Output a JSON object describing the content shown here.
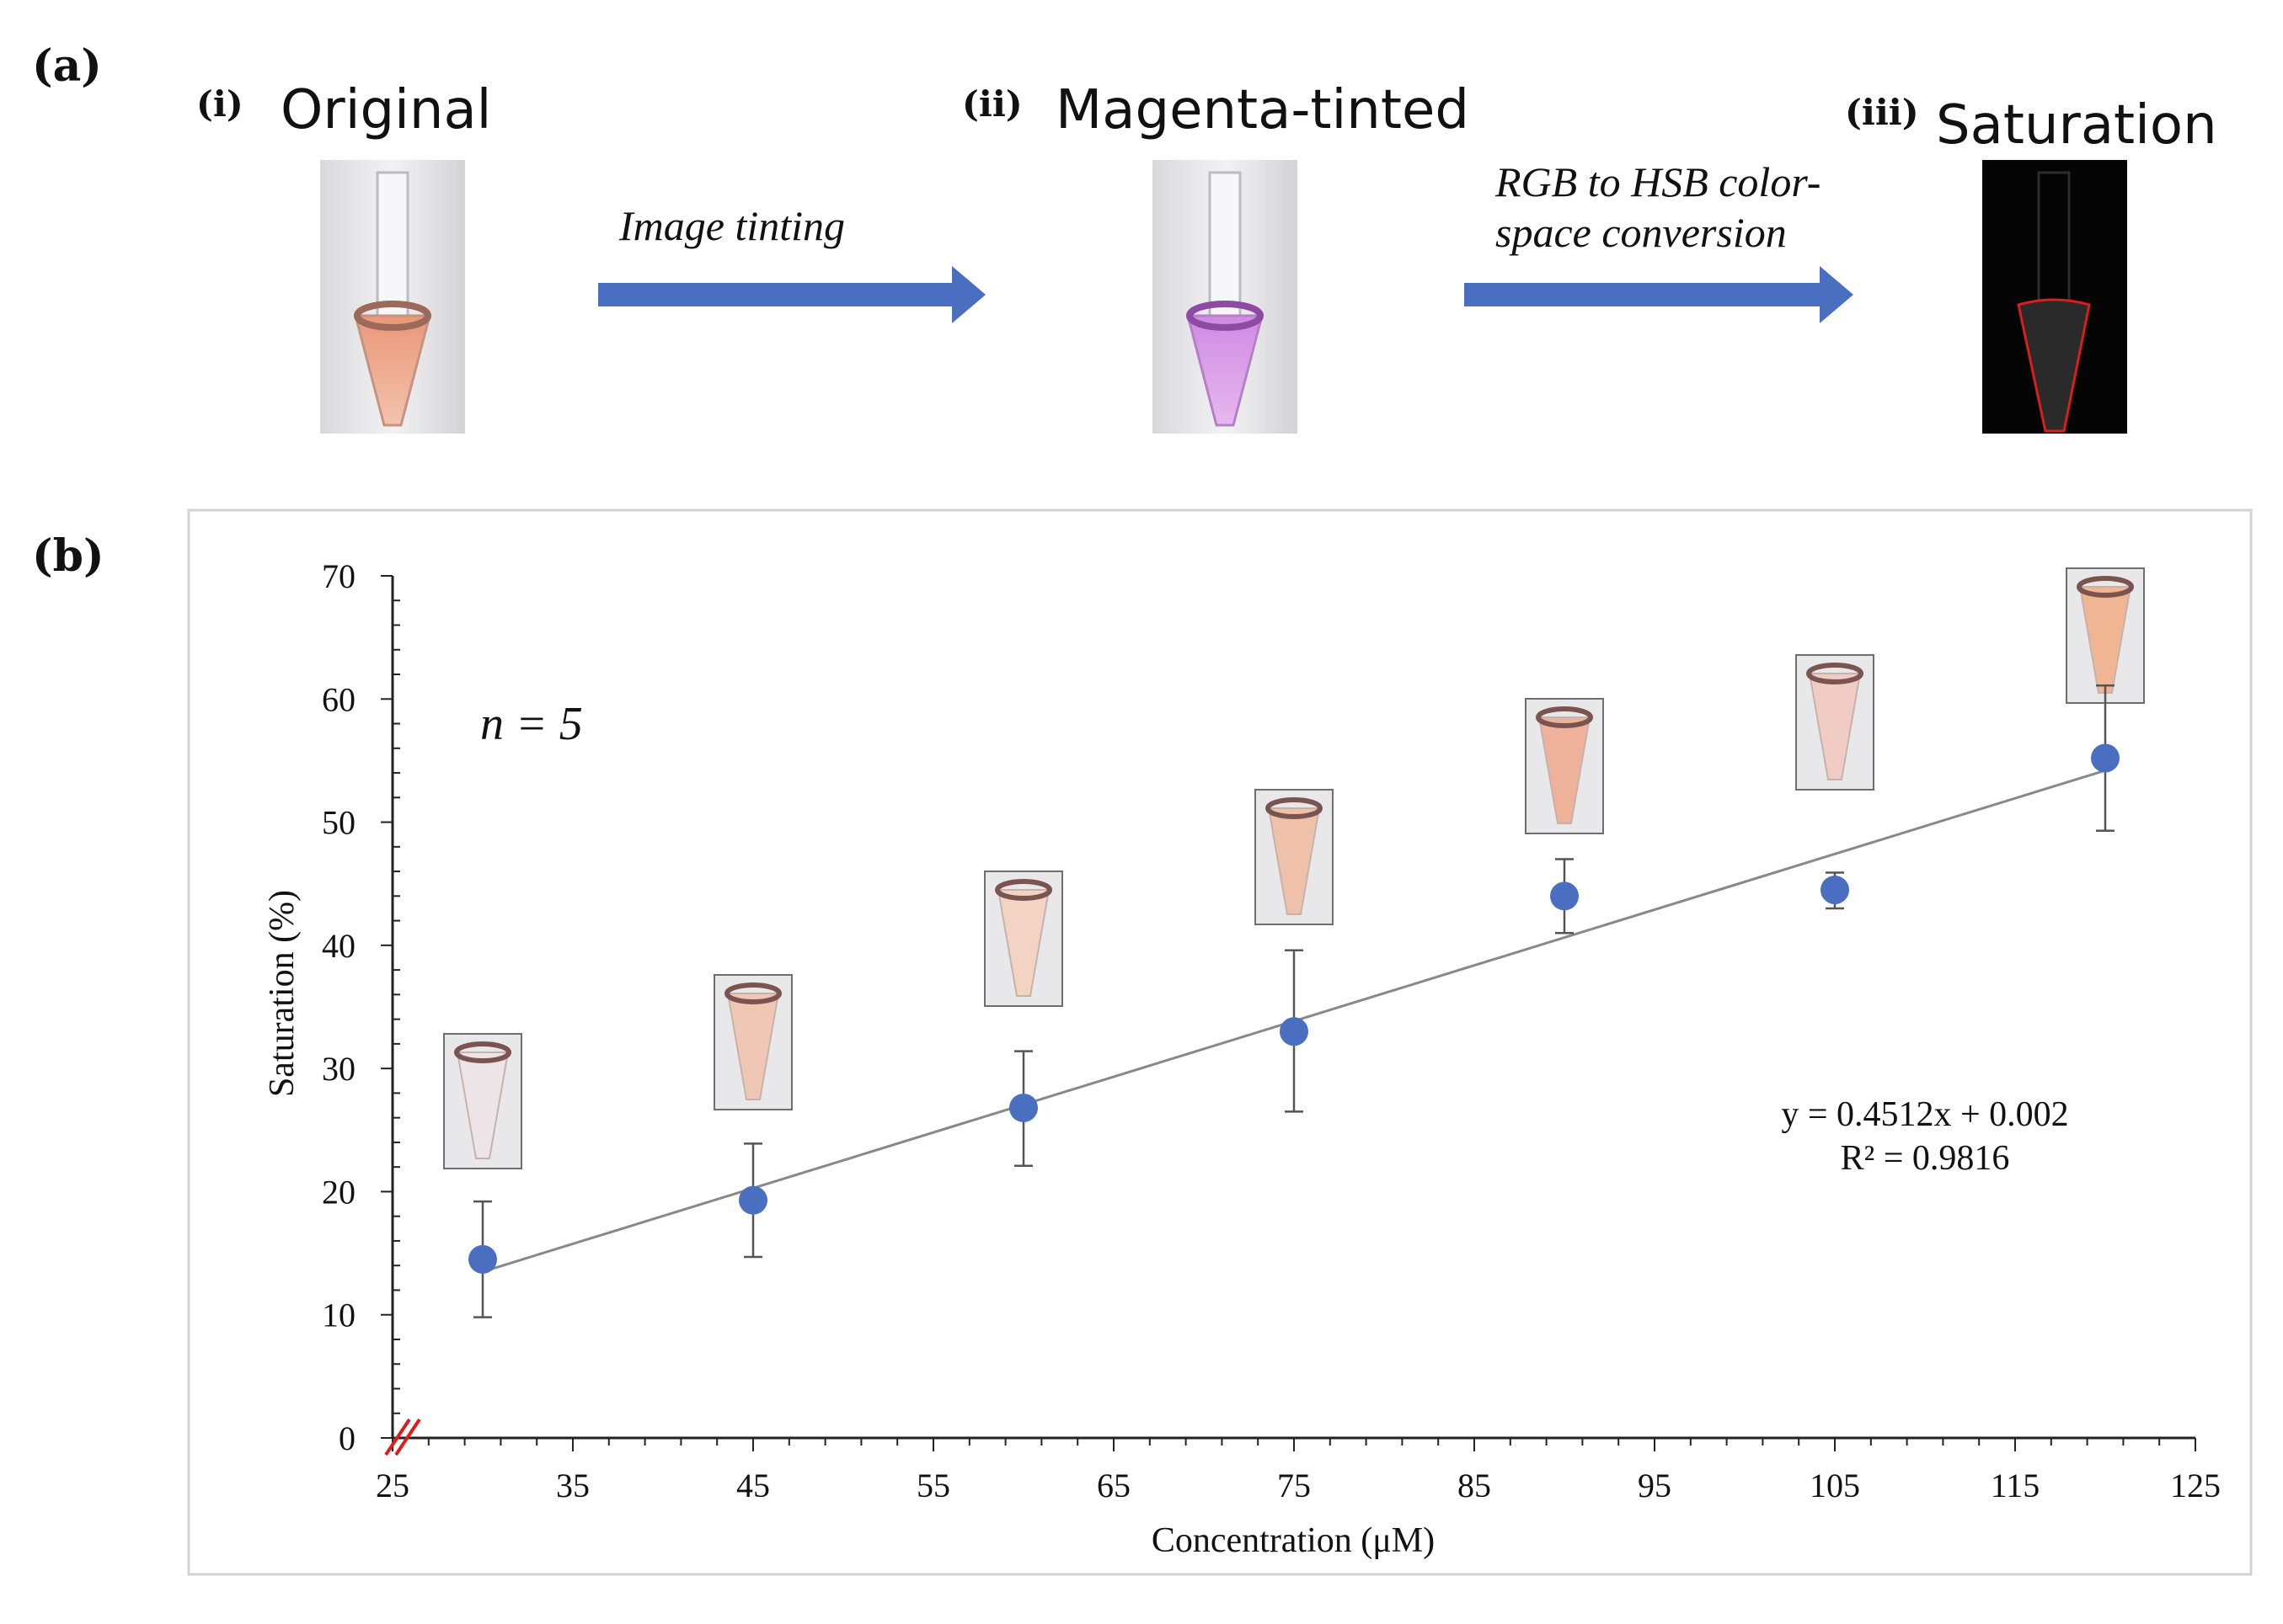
{
  "panel_a": {
    "label": "(a)",
    "steps": [
      {
        "num": "(i)",
        "title": "Original"
      },
      {
        "num": "(ii)",
        "title": "Magenta-tinted"
      },
      {
        "num": "(iii)",
        "title": "Saturation"
      }
    ],
    "arrows": [
      {
        "lines": [
          "Image tinting"
        ]
      },
      {
        "lines": [
          "RGB to HSB color-",
          "space conversion"
        ]
      }
    ],
    "colors": {
      "arrow": "#4a6fc1",
      "original_liquid": "#eaa58a",
      "tinted_liquid": "#d79ae6",
      "saturation_outline": "#d81e1e"
    }
  },
  "panel_b": {
    "label": "(b)"
  },
  "chart_data": {
    "type": "scatter",
    "title": "",
    "xlabel": "Concentration (μM)",
    "ylabel": "Saturation (%)",
    "xlim": [
      25,
      125
    ],
    "ylim": [
      0,
      70
    ],
    "xticks": [
      25,
      35,
      45,
      55,
      65,
      75,
      85,
      95,
      105,
      115,
      125
    ],
    "yticks": [
      0,
      10,
      20,
      30,
      40,
      50,
      60,
      70
    ],
    "series": [
      {
        "name": "Saturation",
        "x": [
          30,
          45,
          60,
          75,
          90,
          105,
          120
        ],
        "y": [
          14.5,
          19.3,
          26.8,
          33.0,
          44.0,
          44.5,
          55.2
        ],
        "err_low": [
          9.8,
          14.7,
          22.1,
          26.5,
          41.0,
          43.0,
          49.3
        ],
        "err_high": [
          19.2,
          23.9,
          31.4,
          39.6,
          47.0,
          45.9,
          61.1
        ],
        "color": "#4a6fc1"
      }
    ],
    "trendline": {
      "x": [
        30,
        120
      ],
      "y": [
        13.5,
        54.2
      ],
      "color": "#888888"
    },
    "equation": "y = 0.4512x + 0.002",
    "r_squared": "R² = 0.9816",
    "sample_annotation": "n = 5",
    "axis_break": true
  }
}
